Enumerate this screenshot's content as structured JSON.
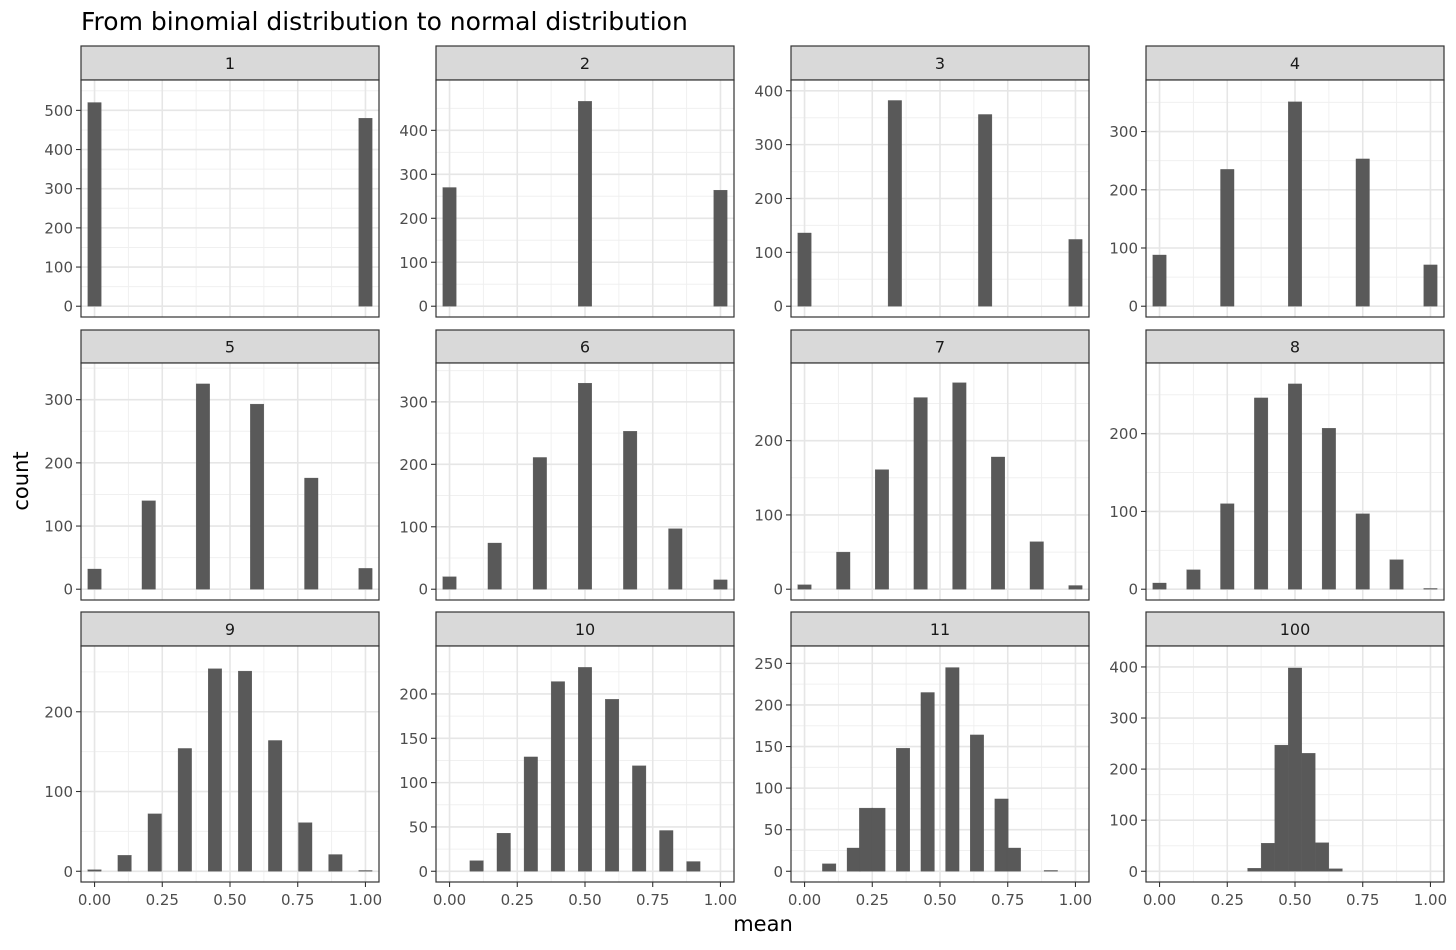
{
  "chart_data": {
    "type": "bar",
    "title": "From binomial distribution to normal distribution",
    "xlabel": "mean",
    "ylabel": "count",
    "grid": true,
    "x_ticks": [
      0,
      0.25,
      0.5,
      0.75,
      1
    ],
    "x_tick_labels": [
      "0.00",
      "0.25",
      "0.50",
      "0.75",
      "1.00"
    ],
    "xlim": [
      -0.05,
      1.05
    ],
    "bar_color": "#595959",
    "strip_color": "#d9d9d9",
    "panels": [
      {
        "label": "1",
        "ylim": [
          0,
          550
        ],
        "y_ticks": [
          0,
          100,
          200,
          300,
          400,
          500
        ],
        "bin_width": 0.05,
        "x": [
          0,
          1
        ],
        "values": [
          520,
          480
        ]
      },
      {
        "label": "2",
        "ylim": [
          0,
          490
        ],
        "y_ticks": [
          0,
          100,
          200,
          300,
          400
        ],
        "bin_width": 0.05,
        "x": [
          0,
          0.5,
          1
        ],
        "values": [
          270,
          466,
          264
        ]
      },
      {
        "label": "3",
        "ylim": [
          0,
          400
        ],
        "y_ticks": [
          0,
          100,
          200,
          300,
          400
        ],
        "bin_width": 0.05,
        "x": [
          0,
          0.3333,
          0.6667,
          1
        ],
        "values": [
          136,
          382,
          356,
          124
        ]
      },
      {
        "label": "4",
        "ylim": [
          0,
          370
        ],
        "y_ticks": [
          0,
          100,
          200,
          300
        ],
        "bin_width": 0.05,
        "x": [
          0,
          0.25,
          0.5,
          0.75,
          1
        ],
        "values": [
          88,
          235,
          351,
          253,
          71
        ]
      },
      {
        "label": "5",
        "ylim": [
          0,
          341
        ],
        "y_ticks": [
          0,
          100,
          200,
          300
        ],
        "bin_width": 0.05,
        "x": [
          0,
          0.2,
          0.4,
          0.6,
          0.8,
          1
        ],
        "values": [
          32,
          140,
          325,
          293,
          176,
          33
        ]
      },
      {
        "label": "6",
        "ylim": [
          0,
          345
        ],
        "y_ticks": [
          0,
          100,
          200,
          300
        ],
        "bin_width": 0.05,
        "x": [
          0,
          0.1667,
          0.3333,
          0.5,
          0.6667,
          0.8333,
          1
        ],
        "values": [
          20,
          74,
          211,
          330,
          253,
          97,
          15
        ]
      },
      {
        "label": "7",
        "ylim": [
          0,
          290
        ],
        "y_ticks": [
          0,
          100,
          200
        ],
        "bin_width": 0.05,
        "x": [
          0,
          0.1429,
          0.2857,
          0.4286,
          0.5714,
          0.7143,
          0.8571,
          1
        ],
        "values": [
          6,
          50,
          161,
          258,
          278,
          178,
          64,
          5
        ]
      },
      {
        "label": "8",
        "ylim": [
          0,
          277
        ],
        "y_ticks": [
          0,
          100,
          200
        ],
        "bin_width": 0.05,
        "x": [
          0,
          0.125,
          0.25,
          0.375,
          0.5,
          0.625,
          0.75,
          0.875,
          1
        ],
        "values": [
          8,
          25,
          110,
          246,
          264,
          207,
          97,
          38,
          1
        ]
      },
      {
        "label": "9",
        "ylim": [
          0,
          269
        ],
        "y_ticks": [
          0,
          100,
          200
        ],
        "bin_width": 0.05,
        "x": [
          0,
          0.1111,
          0.2222,
          0.3333,
          0.4444,
          0.5556,
          0.6667,
          0.7778,
          0.8889,
          1
        ],
        "values": [
          2,
          20,
          72,
          154,
          254,
          251,
          164,
          61,
          21,
          1
        ]
      },
      {
        "label": "10",
        "ylim": [
          0,
          242
        ],
        "y_ticks": [
          0,
          50,
          100,
          150,
          200
        ],
        "bin_width": 0.05,
        "x": [
          0.1,
          0.2,
          0.3,
          0.4,
          0.5,
          0.6,
          0.7,
          0.8,
          0.9
        ],
        "values": [
          12,
          43,
          129,
          214,
          230,
          194,
          119,
          46,
          11
        ]
      },
      {
        "label": "11",
        "ylim": [
          0,
          258
        ],
        "y_ticks": [
          0,
          50,
          100,
          150,
          200,
          250
        ],
        "bin_width": 0.05,
        "x": [
          0.0909,
          0.1818,
          0.2273,
          0.2727,
          0.3636,
          0.4545,
          0.5455,
          0.6364,
          0.7273,
          0.7727,
          0.9091
        ],
        "values": [
          9,
          28,
          76,
          76,
          148,
          215,
          245,
          164,
          87,
          28,
          1
        ]
      },
      {
        "label": "100",
        "ylim": [
          0,
          420
        ],
        "y_ticks": [
          0,
          100,
          200,
          300,
          400
        ],
        "bin_width": 0.05,
        "x": [
          0.35,
          0.4,
          0.45,
          0.5,
          0.55,
          0.6,
          0.65
        ],
        "values": [
          6,
          55,
          247,
          398,
          231,
          56,
          5
        ]
      }
    ]
  }
}
